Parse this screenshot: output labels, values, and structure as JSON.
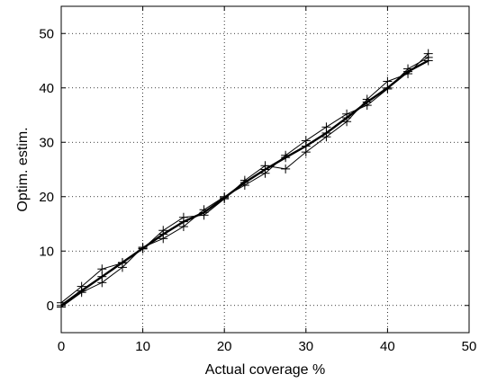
{
  "chart_data": {
    "type": "line",
    "title": "",
    "xlabel": "Actual coverage %",
    "ylabel": "Optim. estim.",
    "xlim": [
      0,
      50
    ],
    "ylim": [
      -5,
      55
    ],
    "xticks": [
      0,
      10,
      20,
      30,
      40,
      50
    ],
    "yticks": [
      0,
      10,
      20,
      30,
      40,
      50
    ],
    "grid": true,
    "grid_style": "dotted",
    "legend": "none",
    "x": [
      0,
      2.5,
      5,
      7.5,
      10,
      12.5,
      15,
      17.5,
      20,
      22.5,
      25,
      27.5,
      30,
      32.5,
      35,
      37.5,
      40,
      42.5,
      45
    ],
    "series": [
      {
        "marker": "plus",
        "color": "#000000",
        "width": 2.4,
        "values": [
          0,
          2.7,
          5.3,
          7.9,
          10.5,
          13.1,
          15.4,
          17.1,
          19.8,
          22.6,
          25.0,
          27.2,
          29.3,
          31.7,
          34.5,
          37.4,
          40.0,
          43.0,
          45.0
        ]
      },
      {
        "marker": "plus",
        "color": "#000000",
        "width": 1.0,
        "values": [
          0.5,
          3.5,
          6.7,
          7.8,
          10.4,
          13.8,
          16.2,
          16.6,
          19.6,
          23.0,
          25.7,
          25.1,
          28.2,
          31.0,
          33.8,
          37.9,
          41.2,
          42.6,
          46.3
        ]
      },
      {
        "marker": "plus",
        "color": "#000000",
        "width": 1.0,
        "values": [
          -0.3,
          2.4,
          4.2,
          7.0,
          10.7,
          12.3,
          14.5,
          17.6,
          20.0,
          22.1,
          24.3,
          27.6,
          30.3,
          32.8,
          35.2,
          36.8,
          39.8,
          43.5,
          45.6
        ]
      }
    ],
    "colors": {
      "axis": "#000000",
      "grid": "#000000",
      "line": "#000000"
    }
  }
}
